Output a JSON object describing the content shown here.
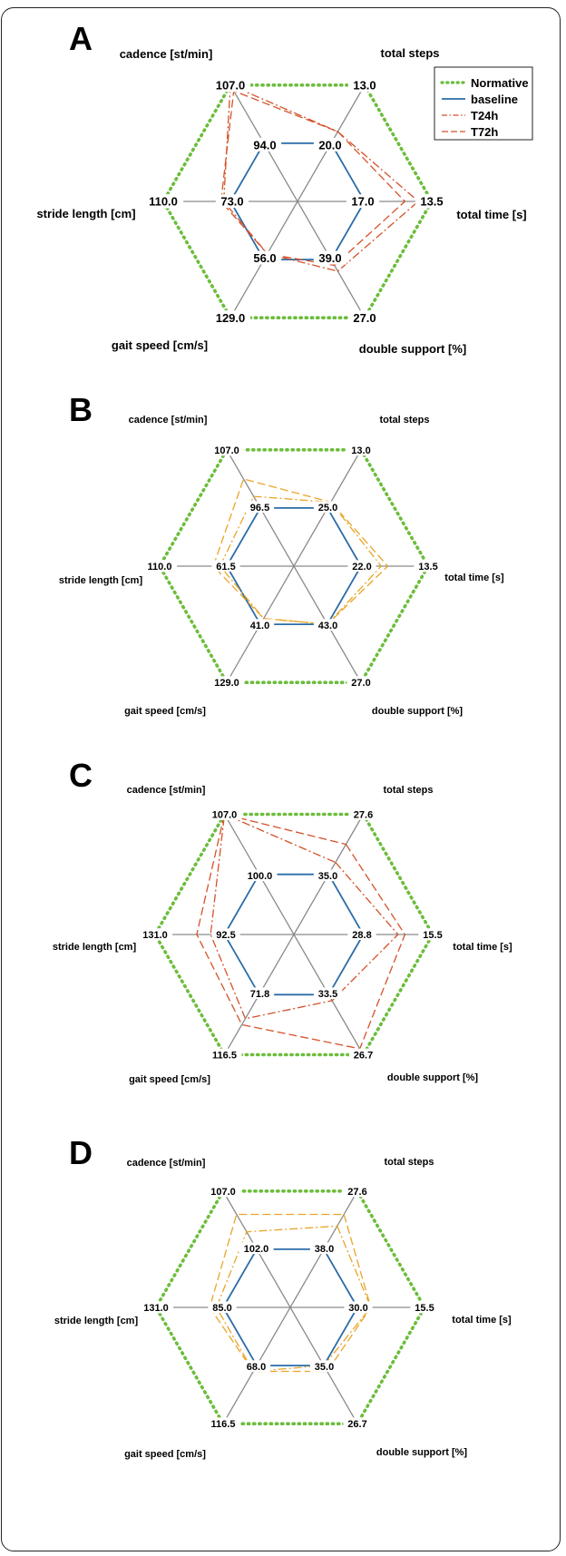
{
  "colors": {
    "normative": "#6cbd3c",
    "baseline": "#2b6ca8",
    "t24h": "#d4522a",
    "t72h": "#d4522a",
    "t24h_alt": "#e9a528",
    "t72h_alt": "#e9a528",
    "axis": "#8a8a8a"
  },
  "legend": {
    "position": "top-right",
    "entries": [
      {
        "label": "Normative",
        "style": "dotted",
        "color": "#6cbd3c"
      },
      {
        "label": "baseline",
        "style": "solid",
        "color": "#2b6ca8"
      },
      {
        "label": "T24h",
        "style": "dashdot",
        "color": "#d4522a"
      },
      {
        "label": "T72h",
        "style": "dashed",
        "color": "#d4522a"
      }
    ]
  },
  "chart_data": [
    {
      "type": "radar",
      "panel": "A",
      "axes": [
        "total steps",
        "total time [s]",
        "double support [%]",
        "gait speed [cm/s]",
        "stride length [cm]",
        "cadence [st/min]"
      ],
      "outer_ticks": [
        "13.0",
        "13.5",
        "27.0",
        "129.0",
        "110.0",
        "107.0"
      ],
      "inner_ticks": [
        "20.0",
        "17.0",
        "39.0",
        "56.0",
        "73.0",
        "94.0"
      ],
      "series": [
        {
          "name": "Normative",
          "values": [
            1,
            1,
            1,
            1,
            1,
            1
          ]
        },
        {
          "name": "baseline",
          "values": [
            0.5,
            0.5,
            0.5,
            0.5,
            0.5,
            0.5
          ]
        },
        {
          "name": "T24h",
          "values": [
            0.6,
            0.9,
            0.6,
            0.45,
            0.55,
            1.0
          ]
        },
        {
          "name": "T72h",
          "values": [
            0.6,
            0.8,
            0.55,
            0.45,
            0.57,
            0.95
          ]
        }
      ]
    },
    {
      "type": "radar",
      "panel": "B",
      "axes": [
        "total steps",
        "total time [s]",
        "double support [%]",
        "gait speed [cm/s]",
        "stride length [cm]",
        "cadence [st/min]"
      ],
      "outer_ticks": [
        "13.0",
        "13.5",
        "27.0",
        "129.0",
        "110.0",
        "107.0"
      ],
      "inner_ticks": [
        "25.0",
        "22.0",
        "43.0",
        "41.0",
        "61.5",
        "96.5"
      ],
      "series": [
        {
          "name": "Normative",
          "values": [
            1,
            1,
            1,
            1,
            1,
            1
          ]
        },
        {
          "name": "baseline",
          "values": [
            0.5,
            0.5,
            0.5,
            0.5,
            0.5,
            0.5
          ]
        },
        {
          "name": "T24h",
          "values": [
            0.55,
            0.65,
            0.5,
            0.45,
            0.55,
            0.6
          ]
        },
        {
          "name": "T72h",
          "values": [
            0.55,
            0.7,
            0.5,
            0.45,
            0.6,
            0.75
          ]
        }
      ]
    },
    {
      "type": "radar",
      "panel": "C",
      "axes": [
        "total steps",
        "total time [s]",
        "double support [%]",
        "gait speed [cm/s]",
        "stride length [cm]",
        "cadence [st/min]"
      ],
      "outer_ticks": [
        "27.6",
        "15.5",
        "26.7",
        "116.5",
        "131.0",
        "107.0"
      ],
      "inner_ticks": [
        "35.0",
        "28.8",
        "33.5",
        "71.8",
        "92.5",
        "100.0"
      ],
      "series": [
        {
          "name": "Normative",
          "values": [
            1,
            1,
            1,
            1,
            1,
            1
          ]
        },
        {
          "name": "baseline",
          "values": [
            0.5,
            0.5,
            0.5,
            0.5,
            0.5,
            0.5
          ]
        },
        {
          "name": "T24h",
          "values": [
            0.6,
            0.75,
            0.55,
            0.7,
            0.6,
            1.0
          ]
        },
        {
          "name": "T72h",
          "values": [
            0.75,
            0.8,
            0.95,
            0.75,
            0.7,
            1.0
          ]
        }
      ]
    },
    {
      "type": "radar",
      "panel": "D",
      "axes": [
        "total steps",
        "total time [s]",
        "double support [%]",
        "gait speed [cm/s]",
        "stride length [cm]",
        "cadence [st/min]"
      ],
      "outer_ticks": [
        "27.6",
        "15.5",
        "26.7",
        "116.5",
        "131.0",
        "107.0"
      ],
      "inner_ticks": [
        "38.0",
        "30.0",
        "35.0",
        "68.0",
        "85.0",
        "102.0"
      ],
      "series": [
        {
          "name": "Normative",
          "values": [
            1,
            1,
            1,
            1,
            1,
            1
          ]
        },
        {
          "name": "baseline",
          "values": [
            0.5,
            0.5,
            0.5,
            0.5,
            0.5,
            0.5
          ]
        },
        {
          "name": "T24h",
          "values": [
            0.7,
            0.6,
            0.5,
            0.55,
            0.55,
            0.65
          ]
        },
        {
          "name": "T72h",
          "values": [
            0.8,
            0.6,
            0.55,
            0.55,
            0.6,
            0.8
          ]
        }
      ]
    }
  ]
}
